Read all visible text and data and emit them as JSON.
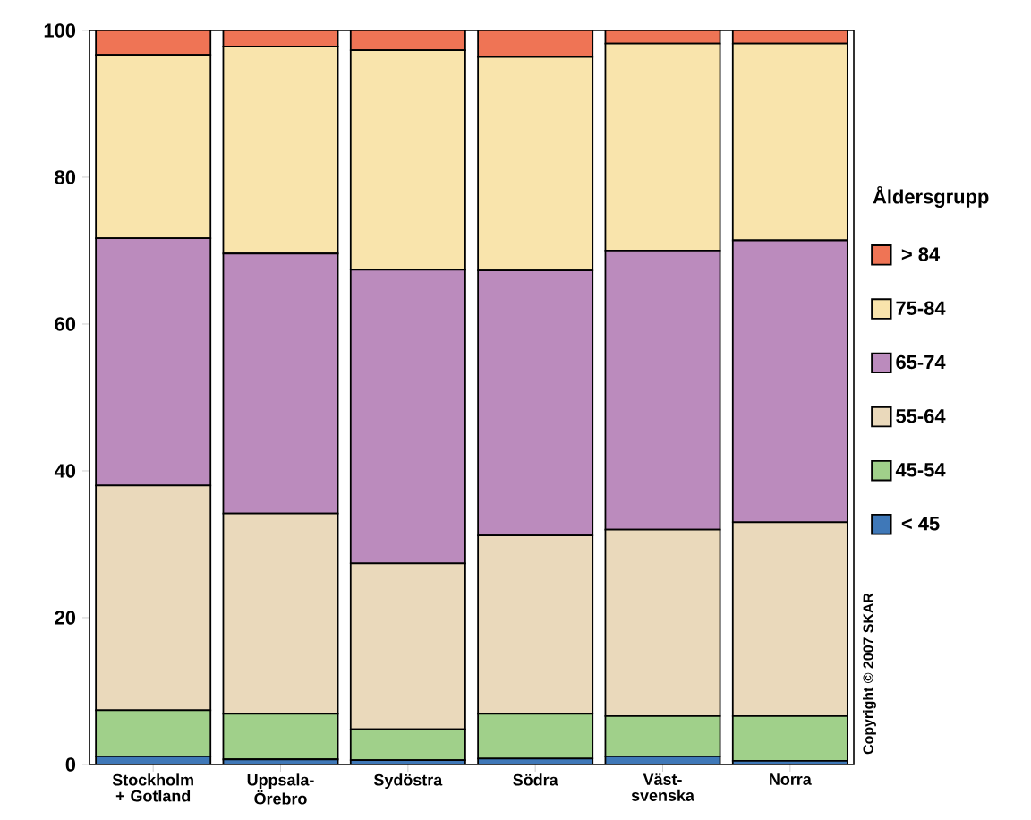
{
  "chart_data": {
    "type": "bar",
    "stacked": true,
    "categories": [
      "Stockholm + Gotland",
      "Uppsala-Örebro",
      "Sydöstra",
      "Södra",
      "Väst-svenska",
      "Norra"
    ],
    "series": [
      {
        "name": "< 45",
        "color": "#3f78b8",
        "values": [
          1.1,
          0.7,
          0.6,
          0.8,
          1.1,
          0.5
        ]
      },
      {
        "name": "45-54",
        "color": "#a0d08a",
        "values": [
          6.3,
          6.2,
          4.2,
          6.1,
          5.5,
          6.1
        ]
      },
      {
        "name": "55-64",
        "color": "#ead9bb",
        "values": [
          30.6,
          27.3,
          22.6,
          24.3,
          25.4,
          26.4
        ]
      },
      {
        "name": "65-74",
        "color": "#bb8bbd",
        "values": [
          33.7,
          35.4,
          40.0,
          36.1,
          38.0,
          38.4
        ]
      },
      {
        "name": "75-84",
        "color": "#f9e4ac",
        "values": [
          25.0,
          28.2,
          29.9,
          29.1,
          28.2,
          26.8
        ]
      },
      {
        "name": "> 84",
        "color": "#ef7455",
        "values": [
          3.3,
          2.2,
          2.7,
          3.6,
          1.8,
          1.8
        ]
      }
    ],
    "legend_title": "Åldersgrupp",
    "legend": "right",
    "ylim": [
      0,
      100
    ],
    "yticks": [
      0,
      20,
      40,
      60,
      80,
      100
    ],
    "annotations": [
      "Copyright © 2007 SKAR"
    ]
  }
}
